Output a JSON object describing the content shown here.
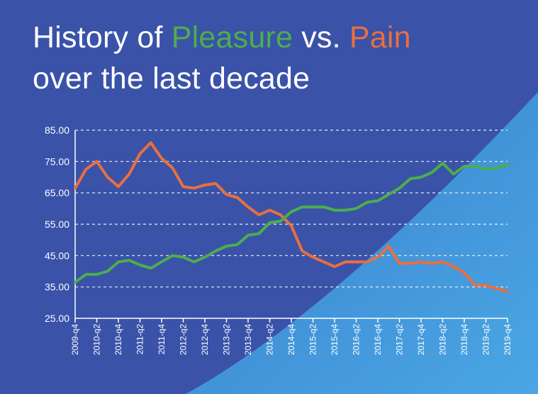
{
  "title": {
    "part1": "History of ",
    "pleasure": "Pleasure",
    "part2": " vs. ",
    "pain": "Pain",
    "line2": "over the last decade"
  },
  "colors": {
    "background_dark": "#3a52a8",
    "background_light": "#3f93d6",
    "pleasure": "#4cae4c",
    "pain": "#ea6f3e",
    "text": "#ffffff"
  },
  "chart_data": {
    "type": "line",
    "ylim": [
      25,
      85
    ],
    "yticks": [
      "25.00",
      "35.00",
      "45.00",
      "55.00",
      "65.00",
      "75.00",
      "85.00"
    ],
    "grid": true,
    "x_tick_labels": [
      "2009-q4",
      "2010-q2",
      "2010-q4",
      "2011-q2",
      "2011-q4",
      "2012-q2",
      "2012-q4",
      "2013-q2",
      "2013-q4",
      "2014-q2",
      "2014-q4",
      "2015-q2",
      "2015-q4",
      "2016-q2",
      "2016-q4",
      "2017-q2",
      "2017-q4",
      "2018-q2",
      "2018-q4",
      "2019-q2",
      "2019-q4"
    ],
    "x": [
      "2009-q4",
      "2010-q1",
      "2010-q2",
      "2010-q3",
      "2010-q4",
      "2011-q1",
      "2011-q2",
      "2011-q3",
      "2011-q4",
      "2012-q1",
      "2012-q2",
      "2012-q3",
      "2012-q4",
      "2013-q1",
      "2013-q2",
      "2013-q3",
      "2013-q4",
      "2014-q1",
      "2014-q2",
      "2014-q3",
      "2014-q4",
      "2015-q1",
      "2015-q2",
      "2015-q3",
      "2015-q4",
      "2016-q1",
      "2016-q2",
      "2016-q3",
      "2016-q4",
      "2017-q1",
      "2017-q2",
      "2017-q3",
      "2017-q4",
      "2018-q1",
      "2018-q2",
      "2018-q3",
      "2018-q4",
      "2019-q1",
      "2019-q2",
      "2019-q3",
      "2019-q4"
    ],
    "series": [
      {
        "name": "Pleasure",
        "color": "#4cae4c",
        "values": [
          36.5,
          39,
          39,
          40,
          43,
          43.5,
          42,
          41,
          43,
          45,
          44.5,
          43,
          44.5,
          46.5,
          48,
          48.5,
          51.5,
          52,
          55.5,
          56,
          59,
          60.5,
          60.5,
          60.5,
          59.5,
          59.5,
          60,
          62,
          62.5,
          64.5,
          66.5,
          69.5,
          70,
          71.5,
          74.5,
          71,
          73.5,
          73.5,
          72.5,
          73,
          74
        ]
      },
      {
        "name": "Pain",
        "color": "#ea6f3e",
        "values": [
          66.5,
          72.5,
          75,
          70,
          67,
          71,
          77.5,
          81,
          76,
          73,
          67,
          66.5,
          67.5,
          68,
          64.5,
          63.5,
          60.5,
          58,
          59.5,
          58,
          54.5,
          46.5,
          44.5,
          43,
          41.5,
          43,
          43,
          43,
          44.5,
          48,
          42.5,
          42.5,
          43,
          42.5,
          43,
          41.5,
          39.5,
          35.5,
          35.5,
          34.5,
          33.5
        ]
      }
    ]
  }
}
